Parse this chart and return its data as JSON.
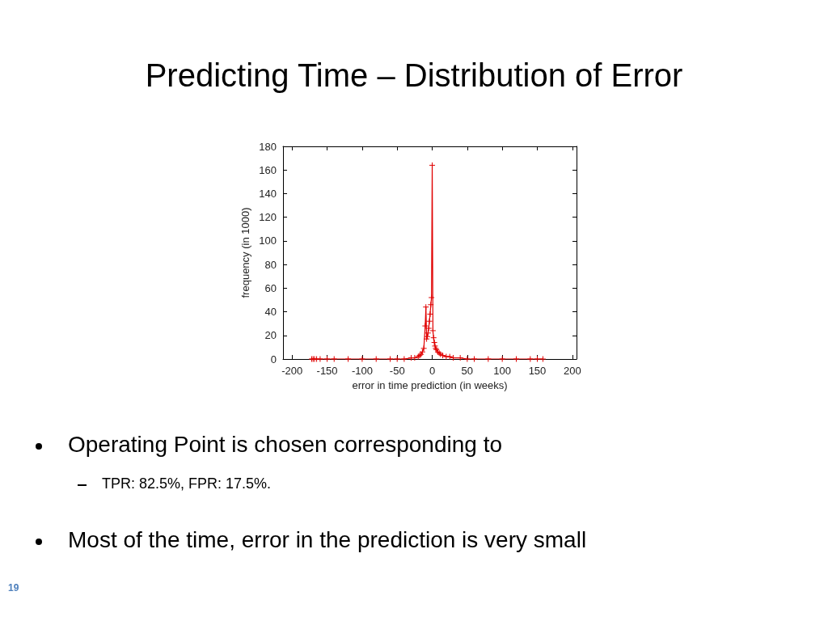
{
  "chart_data": {
    "type": "line",
    "title": "Predicting Time – Distribution of Error",
    "xlabel": "error in time prediction (in weeks)",
    "ylabel": "frequency (in 1000)",
    "x": [
      -172,
      -170,
      -168,
      -165,
      -160,
      -150,
      -140,
      -120,
      -100,
      -80,
      -60,
      -50,
      -40,
      -30,
      -25,
      -20,
      -18,
      -16,
      -14,
      -12,
      -10,
      -9,
      -8,
      -7,
      -6,
      -5,
      -4,
      -3,
      -2,
      -1,
      0,
      1,
      2,
      3,
      4,
      5,
      6,
      8,
      10,
      12,
      15,
      20,
      25,
      30,
      40,
      50,
      60,
      80,
      100,
      120,
      140,
      150,
      158
    ],
    "series": [
      {
        "color": "#e00000",
        "values": [
          0,
          0,
          0,
          0,
          0,
          0,
          0,
          0,
          0,
          0,
          0,
          0,
          0,
          1,
          1,
          2,
          3,
          4,
          6,
          9,
          28,
          44,
          17,
          19,
          22,
          26,
          32,
          38,
          46,
          52,
          164,
          24,
          18,
          14,
          11,
          9,
          8,
          6,
          5,
          4,
          3,
          2,
          2,
          1,
          1,
          0,
          0,
          0,
          0,
          0,
          0,
          0,
          0
        ]
      }
    ],
    "xlim": [
      -213,
      206
    ],
    "xticks": [
      -200,
      -150,
      -100,
      -50,
      0,
      50,
      100,
      150,
      200
    ],
    "ylim": [
      0,
      180
    ],
    "yticks": [
      0,
      20,
      40,
      60,
      80,
      100,
      120,
      140,
      160,
      180
    ],
    "grid": false,
    "marker": "cross",
    "line_style": "solid",
    "annotations": [
      "Operating Point is chosen corresponding to",
      "TPR: 82.5%, FPR: 17.5%.",
      "Most of the time, error in the prediction is very small",
      "19"
    ]
  }
}
